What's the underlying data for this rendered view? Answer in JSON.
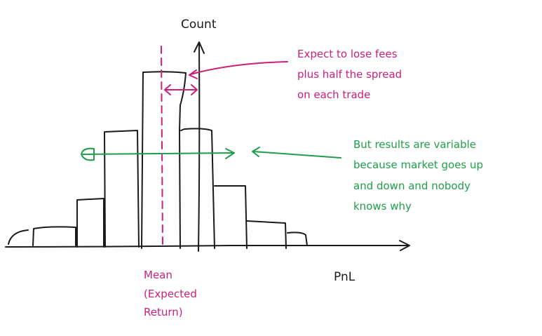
{
  "labels": {
    "y_axis": "Count",
    "x_axis": "PnL",
    "mean": [
      "Mean",
      "(Expected",
      "Return)"
    ],
    "fees_note": [
      "Expect to lose fees",
      "plus half the spread",
      "on each trade"
    ],
    "variability_note": [
      "But results are variable",
      "because market goes up",
      "and down and nobody",
      "knows why"
    ]
  },
  "colors": {
    "ink": "#1a1a1a",
    "magenta": "#cc1f7a",
    "green": "#1f9e4a"
  }
}
